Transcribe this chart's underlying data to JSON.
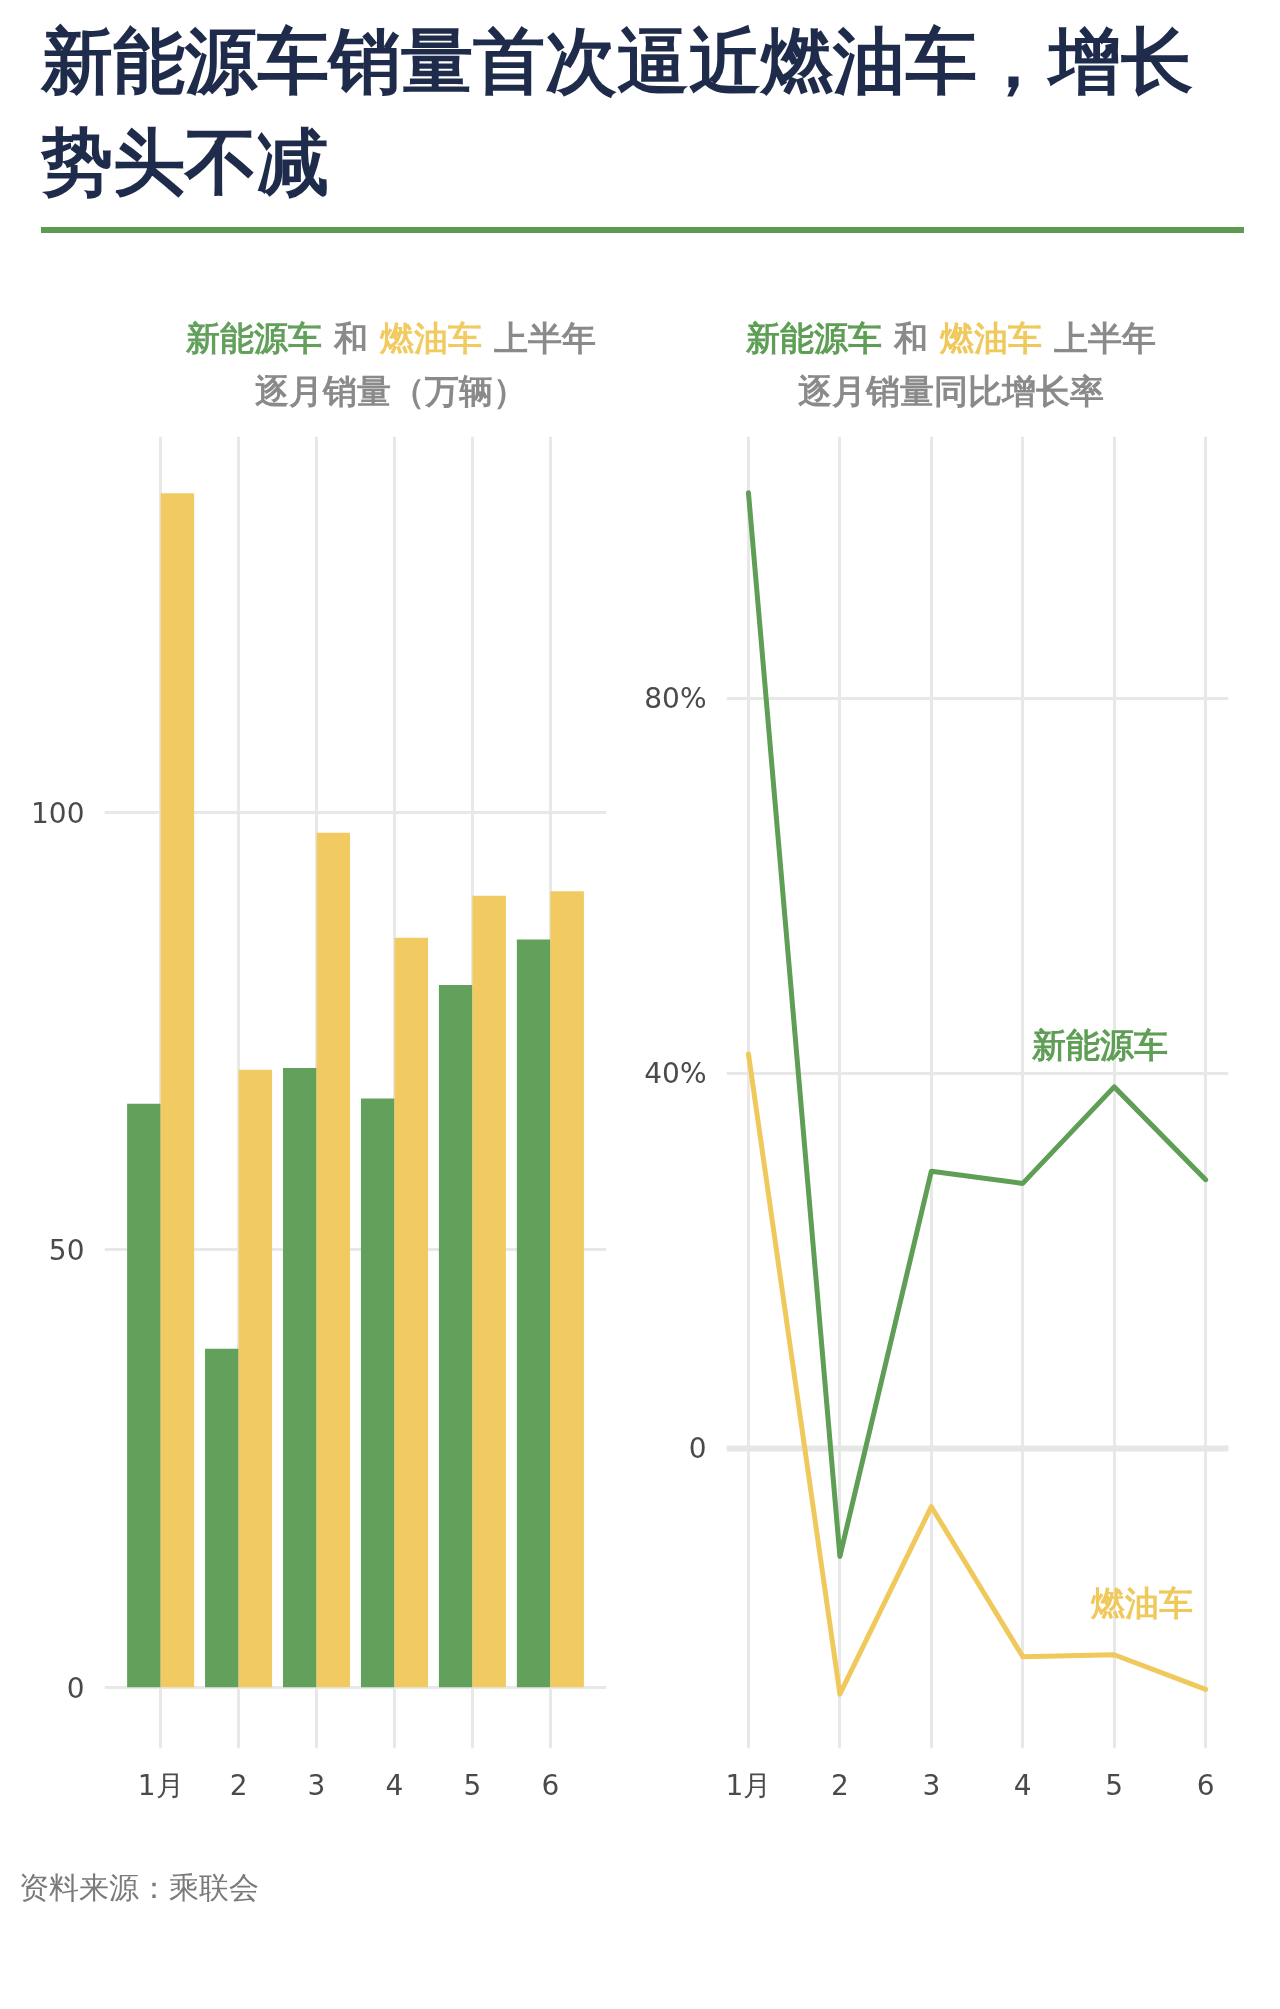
{
  "chart_data": [
    {
      "type": "bar",
      "title": "新能源车销量首次逼近燃油车，增长势头不减",
      "subtitle": "新能源车 和 燃油车 上半年逐月销量（万辆）",
      "categories": [
        "1月",
        "2",
        "3",
        "4",
        "5",
        "6"
      ],
      "series": [
        {
          "color": "#62a05b",
          "values": [
            66.7,
            38.7,
            70.8,
            67.3,
            80.3,
            85.5
          ]
        },
        {
          "color": "#f1cb61",
          "values": [
            136.5,
            70.6,
            97.7,
            85.7,
            90.5,
            91.0
          ]
        }
      ],
      "ylim": [
        -7,
        143
      ],
      "yticks": [
        0,
        50,
        100
      ],
      "grid": true,
      "annotations": [
        "资料来源：乘联会"
      ]
    },
    {
      "type": "line",
      "subtitle": "新能源车 和 燃油车 上半年逐月销量同比增长率",
      "categories": [
        "1月",
        "2",
        "3",
        "4",
        "5",
        "6"
      ],
      "series": [
        {
          "name": "新能源车",
          "color": "#5e9e55",
          "values": [
            102,
            -11.5,
            29.6,
            28.3,
            38.6,
            28.7
          ]
        },
        {
          "name": "燃油车",
          "color": "#f0c95c",
          "values": [
            42.1,
            -26.2,
            -6.2,
            -22.2,
            -22.0,
            -25.7
          ]
        }
      ],
      "ylim": [
        -32,
        108
      ],
      "yticks": [
        0,
        {
          "value": 40,
          "label": "40%"
        },
        {
          "value": 80,
          "label": "80%"
        }
      ],
      "grid": true,
      "ref_lines": [
        {
          "axis": "y",
          "value": 0,
          "color": "#e6e6e6"
        }
      ],
      "line_style": "solid"
    }
  ]
}
